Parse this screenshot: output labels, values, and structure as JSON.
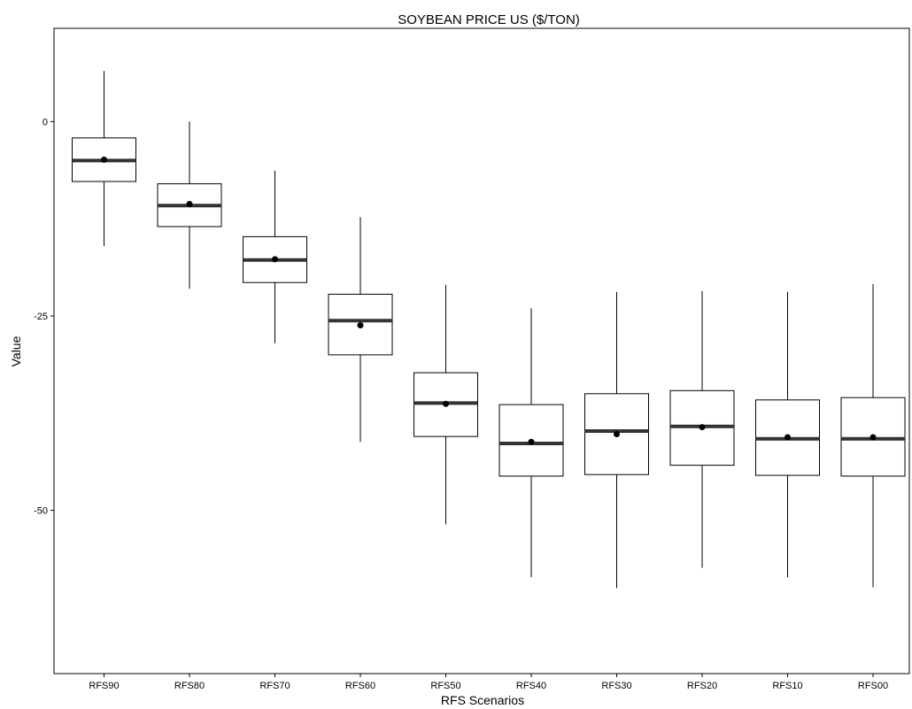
{
  "chart_data": {
    "type": "boxplot",
    "title": "SOYBEAN PRICE US  ($/TON)",
    "xlabel": "RFS Scenarios",
    "ylabel": "Value",
    "ylim": [
      -71,
      12
    ],
    "yticks": [
      0,
      -25,
      -50
    ],
    "ytick_labels": [
      "0",
      "-25",
      "-50"
    ],
    "grid": false,
    "legend": "none",
    "categories": [
      "RFS90",
      "RFS80",
      "RFS70",
      "RFS60",
      "RFS50",
      "RFS40",
      "RFS30",
      "RFS20",
      "RFS10",
      "RFS00"
    ],
    "boxes": [
      {
        "whisker_low": -16.0,
        "q1": -7.7,
        "median": -5.0,
        "q3": -2.1,
        "whisker_high": 6.5,
        "mean": -4.9
      },
      {
        "whisker_low": -21.5,
        "q1": -13.5,
        "median": -10.8,
        "q3": -8.0,
        "whisker_high": 0.0,
        "mean": -10.6
      },
      {
        "whisker_low": -28.5,
        "q1": -20.7,
        "median": -17.8,
        "q3": -14.8,
        "whisker_high": -6.3,
        "mean": -17.7
      },
      {
        "whisker_low": -41.2,
        "q1": -30.0,
        "median": -25.6,
        "q3": -22.2,
        "whisker_high": -12.3,
        "mean": -26.2
      },
      {
        "whisker_low": -51.8,
        "q1": -40.5,
        "median": -36.2,
        "q3": -32.3,
        "whisker_high": -21.0,
        "mean": -36.3
      },
      {
        "whisker_low": -58.6,
        "q1": -45.6,
        "median": -41.4,
        "q3": -36.4,
        "whisker_high": -24.0,
        "mean": -41.2
      },
      {
        "whisker_low": -60.0,
        "q1": -45.4,
        "median": -39.8,
        "q3": -35.0,
        "whisker_high": -21.9,
        "mean": -40.2
      },
      {
        "whisker_low": -57.4,
        "q1": -44.2,
        "median": -39.2,
        "q3": -34.6,
        "whisker_high": -21.8,
        "mean": -39.3
      },
      {
        "whisker_low": -58.6,
        "q1": -45.5,
        "median": -40.8,
        "q3": -35.8,
        "whisker_high": -21.9,
        "mean": -40.6
      },
      {
        "whisker_low": -59.9,
        "q1": -45.6,
        "median": -40.8,
        "q3": -35.5,
        "whisker_high": -20.9,
        "mean": -40.6
      }
    ],
    "colors": {
      "box": "#000000",
      "median": "#333333",
      "mean": "#000000",
      "frame": "#000000"
    }
  }
}
